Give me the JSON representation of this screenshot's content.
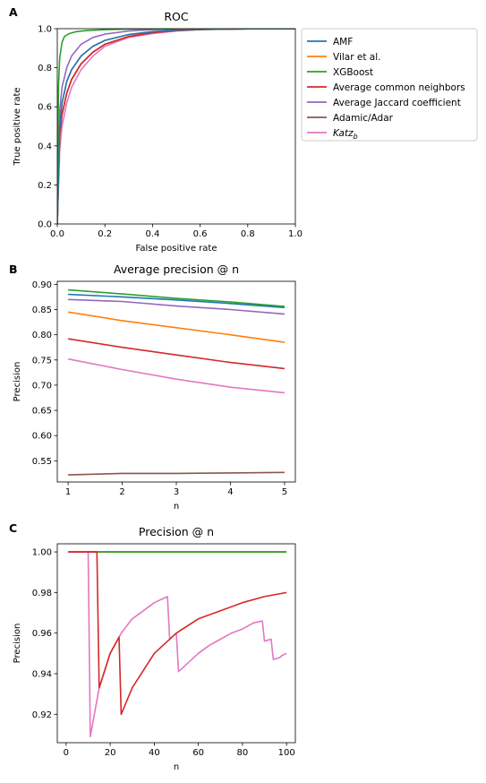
{
  "colors": {
    "AMF": "#1f77b4",
    "Vilar": "#ff7f0e",
    "XGBoost": "#2ca02c",
    "ACN": "#d62728",
    "AJC": "#9467bd",
    "AA": "#8c564b",
    "Katz": "#e377c2"
  },
  "legend": [
    "AMF",
    "Vilar et al.",
    "XGBoost",
    "Average common neighbors",
    "Average Jaccard coefficient",
    "Adamic/Adar",
    "Katz"
  ],
  "legend_subscript": "b",
  "chart_data": [
    {
      "panel": "A",
      "type": "line",
      "title": "ROC",
      "xlabel": "False positive rate",
      "ylabel": "True positive rate",
      "xlim": [
        0,
        1
      ],
      "ylim": [
        0,
        1
      ],
      "xticks": [
        "0.0",
        "0.2",
        "0.4",
        "0.6",
        "0.8",
        "1.0"
      ],
      "yticks": [
        "0.0",
        "0.2",
        "0.4",
        "0.6",
        "0.8",
        "1.0"
      ],
      "series": [
        {
          "name": "AMF",
          "x": [
            0,
            0.01,
            0.02,
            0.04,
            0.06,
            0.1,
            0.15,
            0.2,
            0.3,
            0.4,
            0.5,
            0.6,
            0.8,
            1.0
          ],
          "y": [
            0,
            0.5,
            0.62,
            0.73,
            0.79,
            0.86,
            0.91,
            0.94,
            0.97,
            0.985,
            0.993,
            0.997,
            0.999,
            1.0
          ]
        },
        {
          "name": "Vilar et al.",
          "x": [
            0,
            0.01,
            0.02,
            0.04,
            0.06,
            0.1,
            0.15,
            0.2,
            0.3,
            0.4,
            0.5,
            0.6,
            0.8,
            1.0
          ],
          "y": [
            0,
            0.5,
            0.62,
            0.73,
            0.79,
            0.86,
            0.91,
            0.94,
            0.97,
            0.985,
            0.993,
            0.997,
            0.999,
            1.0
          ]
        },
        {
          "name": "XGBoost",
          "x": [
            0,
            0.005,
            0.01,
            0.02,
            0.03,
            0.05,
            0.08,
            0.12,
            0.2,
            0.3,
            0.5,
            1.0
          ],
          "y": [
            0,
            0.7,
            0.85,
            0.93,
            0.96,
            0.975,
            0.985,
            0.99,
            0.995,
            0.998,
            0.999,
            1.0
          ]
        },
        {
          "name": "Average common neighbors",
          "x": [
            0,
            0.01,
            0.02,
            0.04,
            0.06,
            0.1,
            0.15,
            0.2,
            0.3,
            0.4,
            0.5,
            0.6,
            0.8,
            1.0
          ],
          "y": [
            0,
            0.45,
            0.56,
            0.67,
            0.74,
            0.82,
            0.88,
            0.92,
            0.96,
            0.98,
            0.99,
            0.996,
            0.999,
            1.0
          ]
        },
        {
          "name": "Average Jaccard coefficient",
          "x": [
            0,
            0.01,
            0.02,
            0.04,
            0.06,
            0.1,
            0.15,
            0.2,
            0.3,
            0.4,
            0.6,
            0.8,
            1.0
          ],
          "y": [
            0,
            0.58,
            0.7,
            0.8,
            0.86,
            0.92,
            0.955,
            0.972,
            0.988,
            0.995,
            0.999,
            1.0,
            1.0
          ]
        },
        {
          "name": "Adamic/Adar",
          "x": [
            0,
            0.01,
            0.02,
            0.04,
            0.06,
            0.1,
            0.15,
            0.2,
            0.3,
            0.4,
            0.5,
            0.6,
            0.8,
            1.0
          ],
          "y": [
            0,
            0.45,
            0.56,
            0.67,
            0.74,
            0.82,
            0.88,
            0.92,
            0.96,
            0.98,
            0.99,
            0.996,
            0.999,
            1.0
          ]
        },
        {
          "name": "Katz",
          "x": [
            0,
            0.01,
            0.02,
            0.04,
            0.06,
            0.1,
            0.15,
            0.2,
            0.3,
            0.4,
            0.5,
            0.6,
            0.8,
            1.0
          ],
          "y": [
            0,
            0.38,
            0.5,
            0.62,
            0.7,
            0.79,
            0.86,
            0.91,
            0.955,
            0.975,
            0.988,
            0.995,
            0.999,
            1.0
          ]
        }
      ]
    },
    {
      "panel": "B",
      "type": "line",
      "title": "Average precision @ n",
      "xlabel": "n",
      "ylabel": "Precision",
      "xlim": [
        0.8,
        5.2
      ],
      "ylim": [
        0.508,
        0.906
      ],
      "xticks": [
        "1",
        "2",
        "3",
        "4",
        "5"
      ],
      "yticks": [
        "0.55",
        "0.60",
        "0.65",
        "0.70",
        "0.75",
        "0.80",
        "0.85",
        "0.90"
      ],
      "series": [
        {
          "name": "AMF",
          "x": [
            1,
            2,
            3,
            4,
            5
          ],
          "y": [
            0.88,
            0.875,
            0.869,
            0.862,
            0.854
          ]
        },
        {
          "name": "Vilar et al.",
          "x": [
            1,
            2,
            3,
            4,
            5
          ],
          "y": [
            0.845,
            0.828,
            0.814,
            0.8,
            0.785
          ]
        },
        {
          "name": "XGBoost",
          "x": [
            1,
            2,
            3,
            4,
            5
          ],
          "y": [
            0.889,
            0.881,
            0.872,
            0.865,
            0.856
          ]
        },
        {
          "name": "Average common neighbors",
          "x": [
            1,
            2,
            3,
            4,
            5
          ],
          "y": [
            0.792,
            0.775,
            0.76,
            0.745,
            0.733
          ]
        },
        {
          "name": "Average Jaccard coefficient",
          "x": [
            1,
            2,
            3,
            4,
            5
          ],
          "y": [
            0.87,
            0.866,
            0.857,
            0.85,
            0.841
          ]
        },
        {
          "name": "Adamic/Adar",
          "x": [
            1,
            2,
            3,
            4,
            5
          ],
          "y": [
            0.522,
            0.525,
            0.525,
            0.526,
            0.527
          ]
        },
        {
          "name": "Katz",
          "x": [
            1,
            2,
            3,
            4,
            5
          ],
          "y": [
            0.752,
            0.731,
            0.712,
            0.696,
            0.685
          ]
        }
      ]
    },
    {
      "panel": "C",
      "type": "line",
      "title": "Precision @ n",
      "xlabel": "n",
      "ylabel": "Precision",
      "xlim": [
        -4,
        104
      ],
      "ylim": [
        0.906,
        1.004
      ],
      "xticks": [
        "0",
        "20",
        "40",
        "60",
        "80",
        "100"
      ],
      "yticks": [
        "0.92",
        "0.94",
        "0.96",
        "0.98",
        "1.00"
      ],
      "series": [
        {
          "name": "AMF",
          "x": [
            1,
            100
          ],
          "y": [
            1.0,
            1.0
          ]
        },
        {
          "name": "Vilar et al.",
          "x": [
            1,
            100
          ],
          "y": [
            1.0,
            1.0
          ]
        },
        {
          "name": "XGBoost",
          "x": [
            1,
            100
          ],
          "y": [
            1.0,
            1.0
          ]
        },
        {
          "name": "Average common neighbors",
          "x": [
            1,
            14,
            15,
            20,
            24,
            25,
            30,
            40,
            50,
            60,
            70,
            80,
            90,
            100
          ],
          "y": [
            1.0,
            1.0,
            0.933,
            0.95,
            0.958,
            0.92,
            0.933,
            0.95,
            0.96,
            0.967,
            0.971,
            0.975,
            0.978,
            0.98
          ]
        },
        {
          "name": "Adamic/Adar",
          "x": [
            1,
            100
          ],
          "y": [
            1.0,
            1.0
          ]
        },
        {
          "name": "Katz",
          "x": [
            1,
            10,
            11,
            15,
            20,
            25,
            30,
            35,
            40,
            46,
            47,
            50,
            51,
            55,
            60,
            65,
            70,
            75,
            80,
            85,
            89,
            90,
            93,
            94,
            97,
            98,
            100
          ],
          "y": [
            1.0,
            1.0,
            0.909,
            0.933,
            0.95,
            0.96,
            0.967,
            0.971,
            0.975,
            0.978,
            0.957,
            0.96,
            0.941,
            0.945,
            0.95,
            0.954,
            0.957,
            0.96,
            0.962,
            0.965,
            0.966,
            0.956,
            0.957,
            0.947,
            0.948,
            0.949,
            0.95
          ]
        }
      ]
    }
  ]
}
